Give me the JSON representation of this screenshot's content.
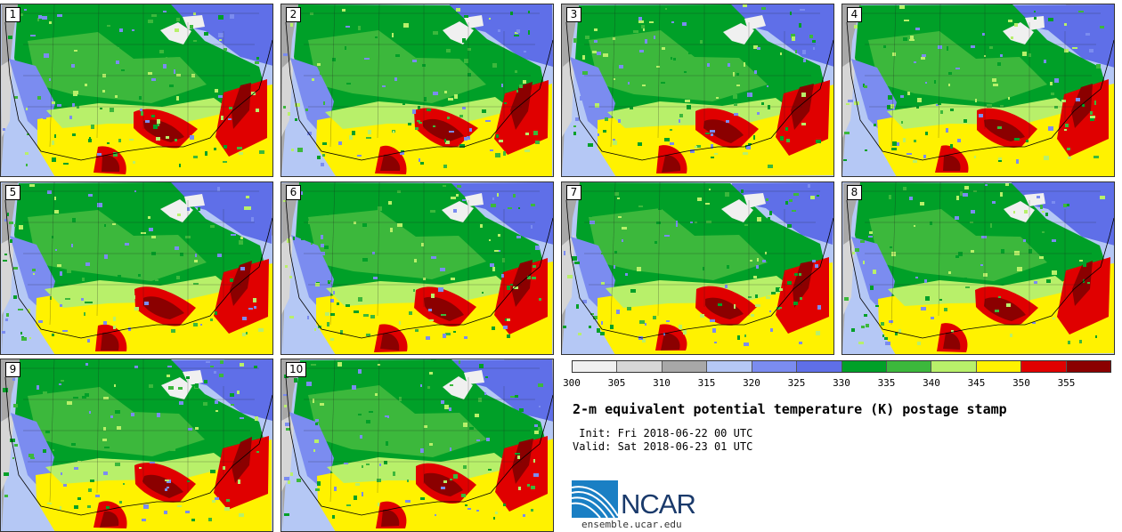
{
  "stamps": [
    {
      "label": "1"
    },
    {
      "label": "2"
    },
    {
      "label": "3"
    },
    {
      "label": "4"
    },
    {
      "label": "5"
    },
    {
      "label": "6"
    },
    {
      "label": "7"
    },
    {
      "label": "8"
    },
    {
      "label": "9"
    },
    {
      "label": "10"
    }
  ],
  "colorbar": {
    "colors": [
      "#f0f0f0",
      "#d6d6d6",
      "#a8a8a8",
      "#b5c8f5",
      "#7b8cf0",
      "#5f6fe8",
      "#00a028",
      "#3cb83c",
      "#b8f06a",
      "#fff200",
      "#e00000",
      "#8b0000"
    ],
    "ticks": [
      "300",
      "305",
      "310",
      "315",
      "320",
      "325",
      "330",
      "335",
      "340",
      "345",
      "350",
      "355"
    ]
  },
  "title": "2-m equivalent potential temperature (K) postage stamp",
  "init": " Init: Fri 2018-06-22 00 UTC",
  "valid": "Valid: Sat 2018-06-23 01 UTC",
  "logo": {
    "name": "NCAR",
    "site": "ensemble.ucar.edu",
    "brand_color": "#1a3a6b",
    "accent_color": "#1a7fc4"
  }
}
